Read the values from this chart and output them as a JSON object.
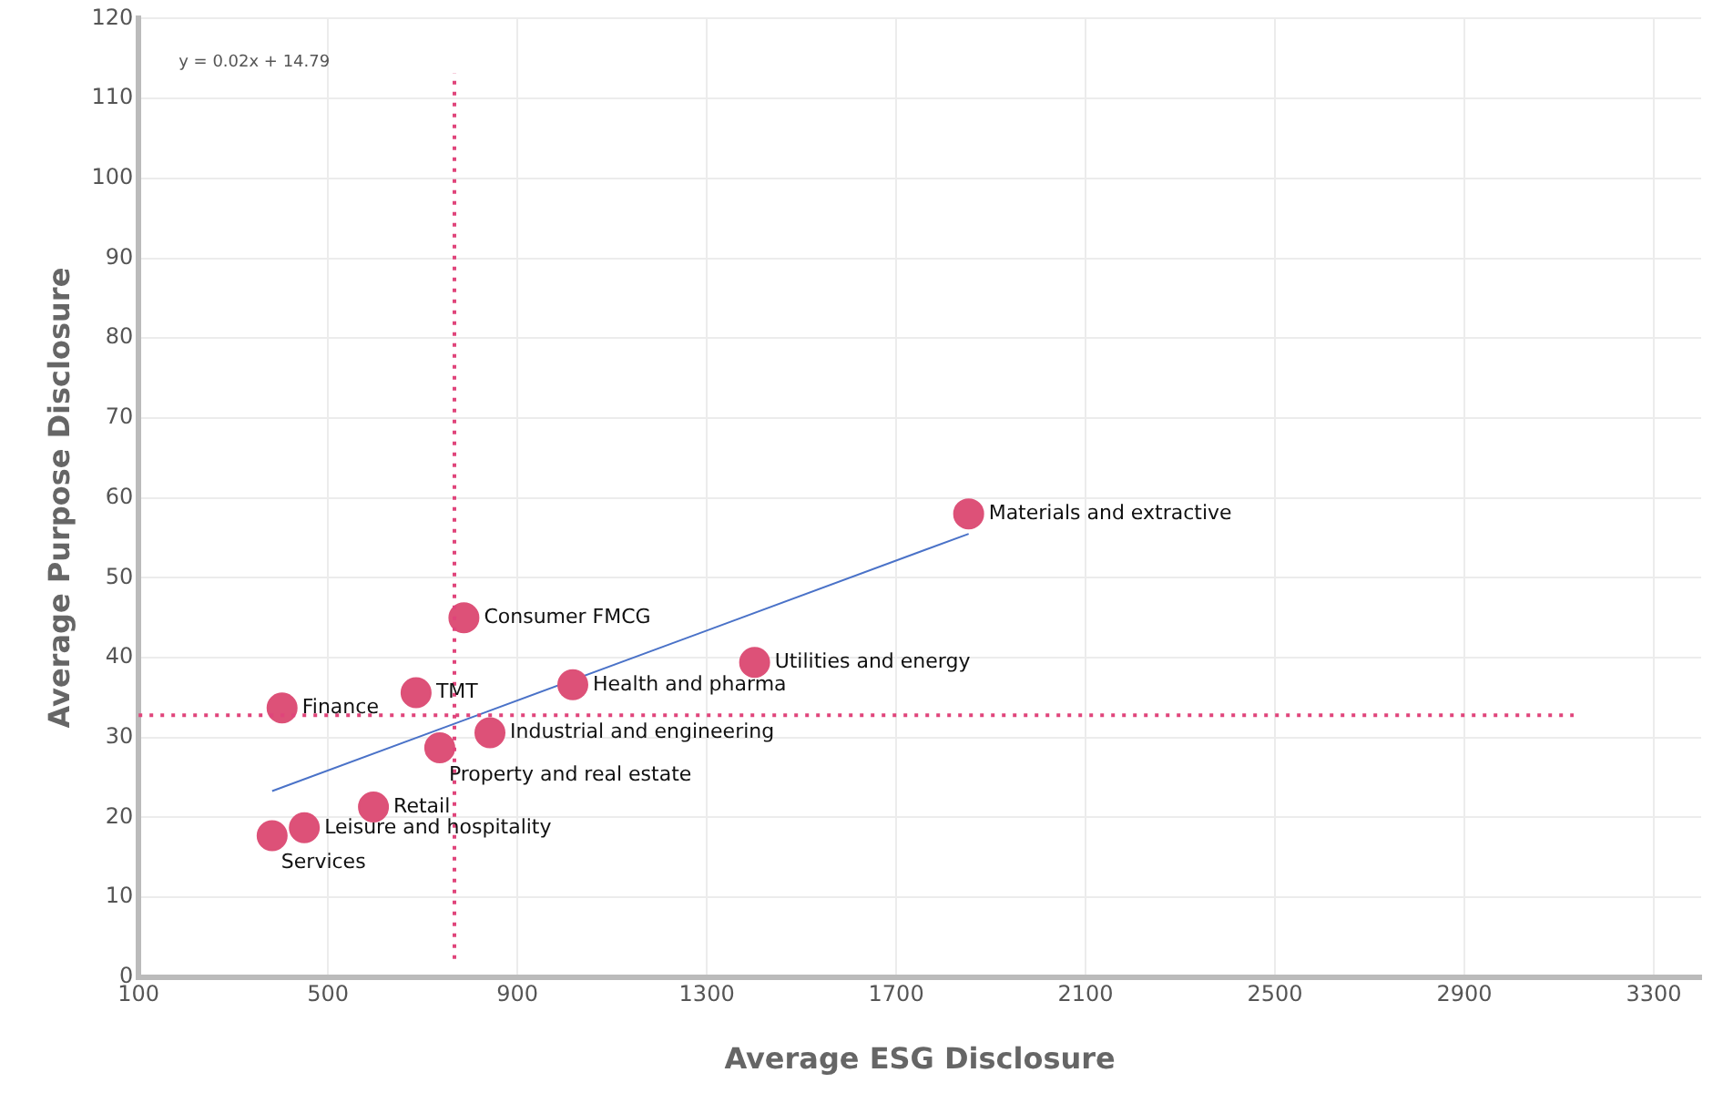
{
  "chart_data": {
    "type": "scatter",
    "xlabel": "Average ESG Disclosure",
    "ylabel": "Average Purpose Disclosure",
    "xlim": [
      100,
      3400
    ],
    "xticks": [
      100,
      500,
      900,
      1300,
      1700,
      2100,
      2500,
      2900,
      3300
    ],
    "ylim": [
      0,
      120
    ],
    "yticks": [
      0,
      10,
      20,
      30,
      40,
      50,
      60,
      70,
      80,
      90,
      100,
      110,
      120
    ],
    "grid": true,
    "legend": false,
    "marker": "circle",
    "series": [
      {
        "type": "scatter",
        "color": "#dd5178",
        "x": [
          382,
          450,
          596,
          403,
          686,
          736,
          787,
          842,
          1017,
          1401,
          1853
        ],
        "values": [
          17.7,
          18.7,
          21.3,
          33.7,
          35.6,
          28.7,
          45.0,
          30.6,
          36.6,
          39.4,
          58.0
        ]
      },
      {
        "type": "line",
        "color": "#4a72c8",
        "line_style": "solid",
        "marker": "none",
        "x": [
          382,
          1853
        ],
        "values": [
          23.3,
          55.5
        ]
      }
    ],
    "ref_lines": [
      {
        "axis": "x",
        "value": 767,
        "color": "#e0457b",
        "line_style": "dotted"
      },
      {
        "axis": "y",
        "value": 32.8,
        "color": "#e0457b",
        "line_style": "dotted"
      }
    ],
    "annotations": [
      "y = 0.02x + 14.79",
      {
        "text": "Services",
        "x": 382,
        "y": 17.7
      },
      {
        "text": "Leisure and hospitality",
        "x": 450,
        "y": 18.7
      },
      {
        "text": "Retail",
        "x": 596,
        "y": 21.3
      },
      {
        "text": "Finance",
        "x": 403,
        "y": 33.7
      },
      {
        "text": "TMT",
        "x": 686,
        "y": 35.6
      },
      {
        "text": "Property and real estate",
        "x": 736,
        "y": 28.7
      },
      {
        "text": "Consumer FMCG",
        "x": 787,
        "y": 45.0
      },
      {
        "text": "Industrial and engineering",
        "x": 842,
        "y": 30.6
      },
      {
        "text": "Health and pharma",
        "x": 1017,
        "y": 36.6
      },
      {
        "text": "Utilities and energy",
        "x": 1401,
        "y": 39.4
      },
      {
        "text": "Materials and extractive",
        "x": 1853,
        "y": 58.0
      }
    ]
  }
}
